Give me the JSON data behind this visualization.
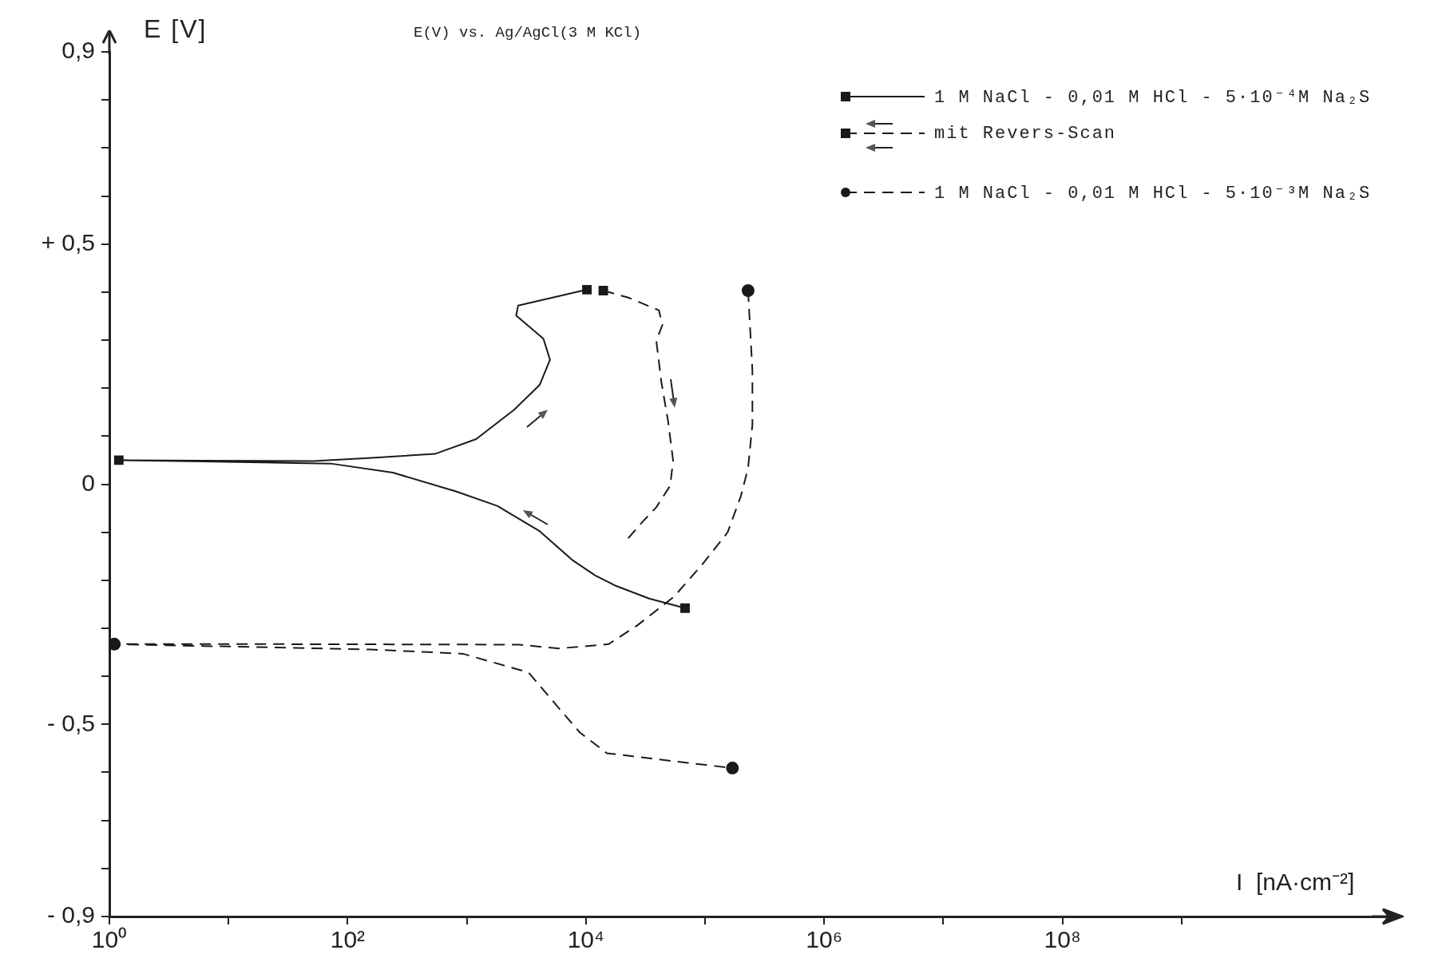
{
  "chart_data": {
    "type": "line",
    "xlabel": "I  [nA·cm⁻²]",
    "ylabel": "E [V]",
    "annotations": [
      "E(V) vs. Ag/AgCl(3 M KCl)"
    ],
    "log": "x",
    "grid": false,
    "legend": "top right",
    "xlim": [
      1,
      60000000000
    ],
    "xticks": [
      {
        "value": 1,
        "label": "10⁰"
      },
      {
        "value": 10,
        "label": null
      },
      {
        "value": 100,
        "label": "10²"
      },
      {
        "value": 1000,
        "label": null
      },
      {
        "value": 10000,
        "label": "10⁴"
      },
      {
        "value": 100000,
        "label": null
      },
      {
        "value": 1000000,
        "label": "10⁶"
      },
      {
        "value": 10000000,
        "label": null
      },
      {
        "value": 100000000,
        "label": "10⁸"
      },
      {
        "value": 1000000000,
        "label": null
      }
    ],
    "ylim": [
      -0.9,
      0.9
    ],
    "yticks": [
      {
        "value": -0.9,
        "label": "- 0,9"
      },
      {
        "value": -0.8,
        "label": null
      },
      {
        "value": -0.7,
        "label": null
      },
      {
        "value": -0.6,
        "label": null
      },
      {
        "value": -0.5,
        "label": "- 0,5"
      },
      {
        "value": -0.4,
        "label": null
      },
      {
        "value": -0.3,
        "label": null
      },
      {
        "value": -0.2,
        "label": null
      },
      {
        "value": -0.1,
        "label": null
      },
      {
        "value": 0,
        "label": "0"
      },
      {
        "value": 0.1,
        "label": null
      },
      {
        "value": 0.2,
        "label": null
      },
      {
        "value": 0.3,
        "label": null
      },
      {
        "value": 0.4,
        "label": null
      },
      {
        "value": 0.5,
        "label": "+ 0,5"
      },
      {
        "value": 0.6,
        "label": null
      },
      {
        "value": 0.7,
        "label": null
      },
      {
        "value": 0.8,
        "label": null
      },
      {
        "value": 0.9,
        "label": "0,9"
      }
    ],
    "series": [
      {
        "name": "1 M NaCl - 0,01 M HCl - 5·10⁻⁴M Na₂S",
        "color": "#1a1a1a",
        "line_style": "solid",
        "x": [
          68000,
          34000,
          18000,
          12000,
          7800,
          4100,
          1800,
          810,
          240,
          72,
          1.2,
          52,
          160,
          540,
          1200,
          2500,
          4100,
          5000,
          4400,
          2600,
          2700,
          10200
        ],
        "values": [
          -0.258,
          -0.238,
          -0.212,
          -0.19,
          -0.159,
          -0.098,
          -0.045,
          -0.015,
          0.024,
          0.043,
          0.05,
          0.048,
          0.055,
          0.063,
          0.094,
          0.155,
          0.207,
          0.259,
          0.303,
          0.351,
          0.372,
          0.405
        ]
      },
      {
        "name": "mit Revers-Scan",
        "color": "#1a1a1a",
        "line_style": "dashed",
        "x": [
          14000,
          23000,
          41000,
          44000,
          39000,
          43000,
          49000,
          54000,
          51000,
          39000,
          30000,
          21000
        ],
        "values": [
          0.403,
          0.388,
          0.362,
          0.332,
          0.299,
          0.213,
          0.131,
          0.049,
          -0.003,
          -0.048,
          -0.078,
          -0.122
        ]
      },
      {
        "name": "1 M NaCl - 0,01 M HCl - 5·10⁻³M Na₂S",
        "color": "#1a1a1a",
        "line_style": "dashed",
        "x": [
          230000,
          250000,
          250000,
          230000,
          200000,
          155000,
          95000,
          55000,
          27000,
          15500,
          5900,
          2750,
          26,
          1.1,
          155,
          930,
          3300,
          5600,
          8900,
          15000,
          48000,
          170000
        ],
        "values": [
          0.403,
          0.236,
          0.124,
          0.034,
          -0.025,
          -0.1,
          -0.167,
          -0.234,
          -0.294,
          -0.333,
          -0.342,
          -0.334,
          -0.333,
          -0.333,
          -0.344,
          -0.353,
          -0.392,
          -0.459,
          -0.517,
          -0.56,
          -0.575,
          -0.591
        ]
      },
      {
        "type": "scatter",
        "color": "#1a1a1a",
        "marker": "square",
        "x": [
          68000,
          1.2,
          10200,
          14000
        ],
        "values": [
          -0.258,
          0.05,
          0.405,
          0.403
        ]
      },
      {
        "type": "scatter",
        "color": "#1a1a1a",
        "marker": "circle",
        "x": [
          230000,
          1.1,
          170000
        ],
        "values": [
          0.403,
          -0.333,
          -0.591
        ]
      }
    ]
  }
}
